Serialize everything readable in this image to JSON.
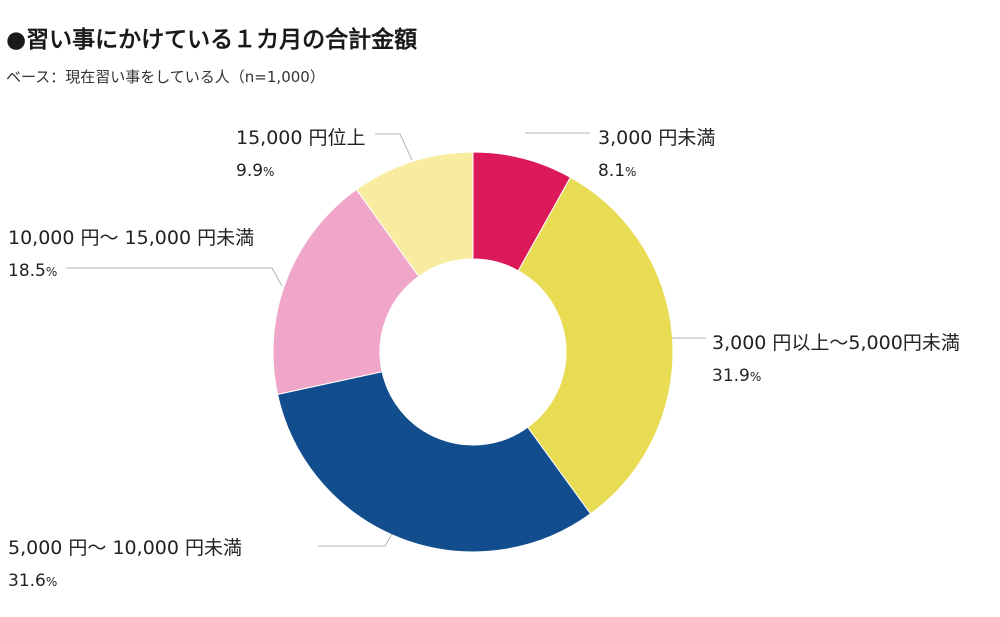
{
  "title": "●習い事にかけている１カ月の合計金額",
  "subtitle": "ベース：現在習い事をしている人（n=1,000）",
  "chart_data": {
    "type": "pie",
    "donut": true,
    "title": "●習い事にかけている１カ月の合計金額",
    "subtitle": "ベース：現在習い事をしている人（n=1,000）",
    "unit": "%",
    "slices": [
      {
        "label": "3,000 円未満",
        "value": 8.1,
        "value_text": "8.1",
        "color": "#dc1a5a"
      },
      {
        "label": "3,000 円以上～5,000円未満",
        "value": 31.9,
        "value_text": "31.9",
        "color": "#e8dc55"
      },
      {
        "label": "5,000 円～ 10,000 円未満",
        "value": 31.6,
        "value_text": "31.6",
        "color": "#124d8e"
      },
      {
        "label": "10,000 円～ 15,000 円未満",
        "value": 18.5,
        "value_text": "18.5",
        "color": "#f0a6c8"
      },
      {
        "label": "15,000 円位上",
        "value": 9.9,
        "value_text": "9.9",
        "color": "#f8eca0"
      }
    ]
  }
}
